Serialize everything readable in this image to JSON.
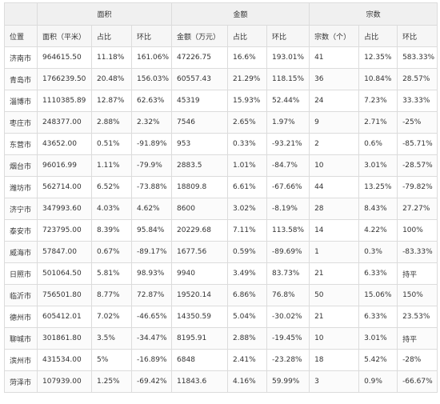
{
  "groups": [
    "面积",
    "金额",
    "宗数"
  ],
  "subheaders": [
    "位置",
    "面积（平米）",
    "占比",
    "环比",
    "金额（万元）",
    "占比",
    "环比",
    "宗数（个）",
    "占比",
    "环比"
  ],
  "rows": [
    [
      "济南市",
      "964615.50",
      "11.18%",
      "161.06%",
      "47226.75",
      "16.6%",
      "193.01%",
      "41",
      "12.35%",
      "583.33%"
    ],
    [
      "青岛市",
      "1766239.50",
      "20.48%",
      "156.03%",
      "60557.43",
      "21.29%",
      "118.15%",
      "36",
      "10.84%",
      "28.57%"
    ],
    [
      "淄博市",
      "1110385.89",
      "12.87%",
      "62.63%",
      "45319",
      "15.93%",
      "52.44%",
      "24",
      "7.23%",
      "33.33%"
    ],
    [
      "枣庄市",
      "248377.00",
      "2.88%",
      "2.32%",
      "7546",
      "2.65%",
      "1.97%",
      "9",
      "2.71%",
      "-25%"
    ],
    [
      "东营市",
      "43652.00",
      "0.51%",
      "-91.89%",
      "953",
      "0.33%",
      "-93.21%",
      "2",
      "0.6%",
      "-85.71%"
    ],
    [
      "烟台市",
      "96016.99",
      "1.11%",
      "-79.9%",
      "2883.5",
      "1.01%",
      "-84.7%",
      "10",
      "3.01%",
      "-28.57%"
    ],
    [
      "潍坊市",
      "562714.00",
      "6.52%",
      "-73.88%",
      "18809.8",
      "6.61%",
      "-67.66%",
      "44",
      "13.25%",
      "-79.82%"
    ],
    [
      "济宁市",
      "347993.60",
      "4.03%",
      "4.62%",
      "8600",
      "3.02%",
      "-8.19%",
      "28",
      "8.43%",
      "27.27%"
    ],
    [
      "泰安市",
      "723795.00",
      "8.39%",
      "95.84%",
      "20229.68",
      "7.11%",
      "113.58%",
      "14",
      "4.22%",
      "100%"
    ],
    [
      "威海市",
      "57847.00",
      "0.67%",
      "-89.17%",
      "1677.56",
      "0.59%",
      "-89.69%",
      "1",
      "0.3%",
      "-83.33%"
    ],
    [
      "日照市",
      "501064.50",
      "5.81%",
      "98.93%",
      "9940",
      "3.49%",
      "83.73%",
      "21",
      "6.33%",
      "持平"
    ],
    [
      "临沂市",
      "756501.80",
      "8.77%",
      "72.87%",
      "19520.14",
      "6.86%",
      "76.8%",
      "50",
      "15.06%",
      "150%"
    ],
    [
      "德州市",
      "605412.01",
      "7.02%",
      "-46.65%",
      "14350.59",
      "5.04%",
      "-30.02%",
      "21",
      "6.33%",
      "23.53%"
    ],
    [
      "聊城市",
      "301861.80",
      "3.5%",
      "-34.47%",
      "8195.91",
      "2.88%",
      "-19.45%",
      "10",
      "3.01%",
      "持平"
    ],
    [
      "滨州市",
      "431534.00",
      "5%",
      "-16.89%",
      "6848",
      "2.41%",
      "-23.28%",
      "18",
      "5.42%",
      "-28%"
    ],
    [
      "菏泽市",
      "107939.00",
      "1.25%",
      "-69.42%",
      "11843.6",
      "4.16%",
      "59.99%",
      "3",
      "0.9%",
      "-66.67%"
    ]
  ]
}
